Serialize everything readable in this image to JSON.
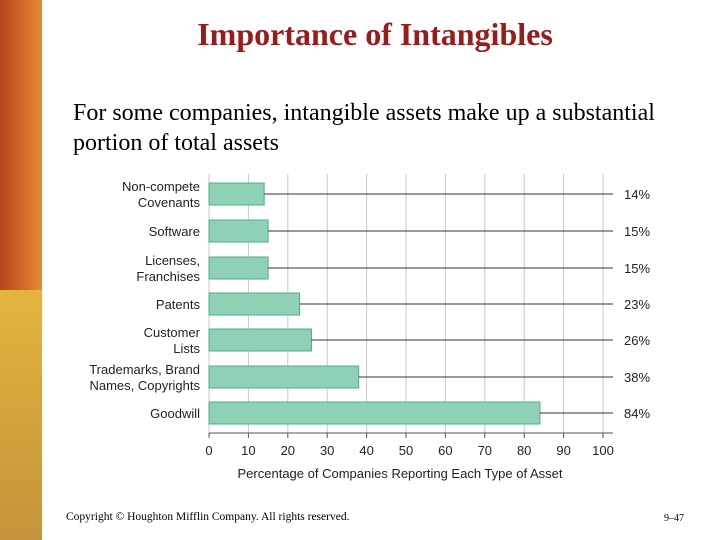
{
  "slide": {
    "title": "Importance of Intangibles",
    "subtitle": "For some companies, intangible assets make up a substantial portion of total assets",
    "footer": "Copyright © Houghton Mifflin Company.  All rights reserved.",
    "page_number": "9–47"
  },
  "chart_data": {
    "type": "bar",
    "orientation": "horizontal",
    "categories": [
      [
        "Non-compete",
        "Covenants"
      ],
      [
        "Software"
      ],
      [
        "Licenses,",
        "Franchises"
      ],
      [
        "Patents"
      ],
      [
        "Customer",
        "Lists"
      ],
      [
        "Trademarks, Brand",
        "Names, Copyrights"
      ],
      [
        "Goodwill"
      ]
    ],
    "values": [
      14,
      15,
      15,
      23,
      26,
      38,
      84
    ],
    "value_labels": [
      "14%",
      "15%",
      "15%",
      "23%",
      "26%",
      "38%",
      "84%"
    ],
    "xlabel": "Percentage of Companies Reporting Each Type of Asset",
    "ylabel": "",
    "xlim": [
      0,
      100
    ],
    "xticks": [
      0,
      10,
      20,
      30,
      40,
      50,
      60,
      70,
      80,
      90,
      100
    ],
    "grid": true,
    "bar_color": "#8fd1b4",
    "bar_edge": "#4fae88"
  }
}
